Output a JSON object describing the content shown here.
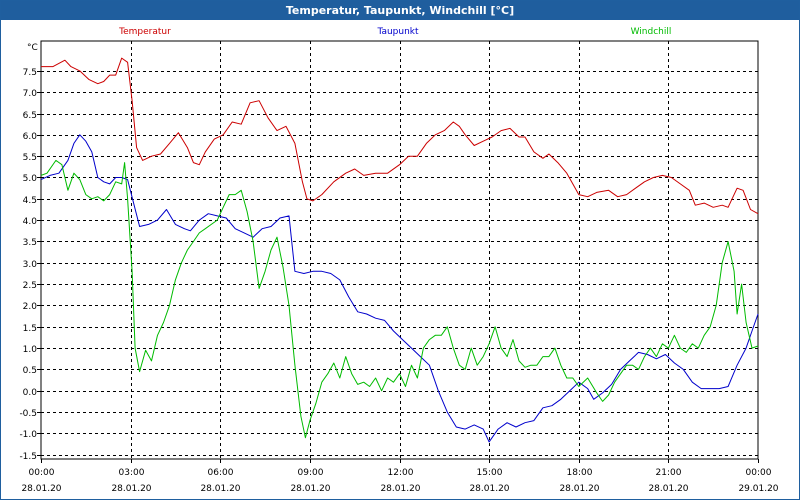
{
  "window": {
    "title": "Temperatur, Taupunkt, Windchill [°C]"
  },
  "chart_data": {
    "type": "line",
    "title": "Temperatur, Taupunkt, Windchill [°C]",
    "ylabel": "°C",
    "xlabel": "",
    "ylim": [
      -1.6,
      8.2
    ],
    "xlim": [
      0,
      24
    ],
    "y_ticks": [
      -1.5,
      -1.0,
      -0.5,
      0.0,
      0.5,
      1.0,
      1.5,
      2.0,
      2.5,
      3.0,
      3.5,
      4.0,
      4.5,
      5.0,
      5.5,
      6.0,
      6.5,
      7.0,
      7.5
    ],
    "y_tick_labels": [
      "-1.5",
      "-1.0",
      "-0.5",
      "0.0",
      "0.5",
      "1.0",
      "1.5",
      "2.0",
      "2.5",
      "3.0",
      "3.5",
      "4.0",
      "4.5",
      "5.0",
      "5.5",
      "6.0",
      "6.5",
      "7.0",
      "7.5"
    ],
    "x_ticks": [
      {
        "hour": 0,
        "time": "00:00",
        "date": "28.01.20"
      },
      {
        "hour": 3,
        "time": "03:00",
        "date": "28.01.20"
      },
      {
        "hour": 6,
        "time": "06:00",
        "date": "28.01.20"
      },
      {
        "hour": 9,
        "time": "09:00",
        "date": "28.01.20"
      },
      {
        "hour": 12,
        "time": "12:00",
        "date": "28.01.20"
      },
      {
        "hour": 15,
        "time": "15:00",
        "date": "28.01.20"
      },
      {
        "hour": 18,
        "time": "18:00",
        "date": "28.01.20"
      },
      {
        "hour": 21,
        "time": "21:00",
        "date": "28.01.20"
      },
      {
        "hour": 24,
        "time": "00:00",
        "date": "29.01.20"
      }
    ],
    "series": [
      {
        "name": "Temperatur",
        "color": "#cc0000",
        "points": [
          [
            0,
            7.6
          ],
          [
            0.4,
            7.6
          ],
          [
            0.8,
            7.75
          ],
          [
            1.0,
            7.6
          ],
          [
            1.3,
            7.5
          ],
          [
            1.6,
            7.3
          ],
          [
            1.9,
            7.2
          ],
          [
            2.1,
            7.25
          ],
          [
            2.3,
            7.4
          ],
          [
            2.5,
            7.4
          ],
          [
            2.7,
            7.8
          ],
          [
            2.9,
            7.7
          ],
          [
            3.05,
            6.8
          ],
          [
            3.2,
            5.7
          ],
          [
            3.4,
            5.4
          ],
          [
            3.7,
            5.5
          ],
          [
            4.0,
            5.55
          ],
          [
            4.3,
            5.8
          ],
          [
            4.6,
            6.05
          ],
          [
            4.9,
            5.7
          ],
          [
            5.1,
            5.35
          ],
          [
            5.3,
            5.3
          ],
          [
            5.5,
            5.6
          ],
          [
            5.8,
            5.9
          ],
          [
            6.1,
            6.0
          ],
          [
            6.4,
            6.3
          ],
          [
            6.7,
            6.25
          ],
          [
            7.0,
            6.75
          ],
          [
            7.3,
            6.8
          ],
          [
            7.6,
            6.4
          ],
          [
            7.9,
            6.1
          ],
          [
            8.2,
            6.2
          ],
          [
            8.5,
            5.8
          ],
          [
            8.75,
            4.9
          ],
          [
            8.9,
            4.5
          ],
          [
            9.1,
            4.45
          ],
          [
            9.4,
            4.6
          ],
          [
            9.8,
            4.9
          ],
          [
            10.2,
            5.1
          ],
          [
            10.5,
            5.2
          ],
          [
            10.8,
            5.05
          ],
          [
            11.2,
            5.1
          ],
          [
            11.6,
            5.1
          ],
          [
            12.0,
            5.3
          ],
          [
            12.3,
            5.5
          ],
          [
            12.6,
            5.5
          ],
          [
            12.9,
            5.8
          ],
          [
            13.2,
            6.0
          ],
          [
            13.5,
            6.1
          ],
          [
            13.8,
            6.3
          ],
          [
            14.0,
            6.2
          ],
          [
            14.2,
            6.0
          ],
          [
            14.5,
            5.75
          ],
          [
            14.8,
            5.85
          ],
          [
            15.1,
            5.95
          ],
          [
            15.4,
            6.1
          ],
          [
            15.7,
            6.15
          ],
          [
            16.0,
            5.95
          ],
          [
            16.2,
            5.95
          ],
          [
            16.5,
            5.6
          ],
          [
            16.8,
            5.45
          ],
          [
            17.0,
            5.55
          ],
          [
            17.3,
            5.35
          ],
          [
            17.6,
            5.1
          ],
          [
            17.8,
            4.85
          ],
          [
            18.0,
            4.6
          ],
          [
            18.3,
            4.55
          ],
          [
            18.6,
            4.65
          ],
          [
            19.0,
            4.7
          ],
          [
            19.3,
            4.55
          ],
          [
            19.6,
            4.6
          ],
          [
            19.9,
            4.75
          ],
          [
            20.2,
            4.9
          ],
          [
            20.5,
            5.0
          ],
          [
            20.8,
            5.05
          ],
          [
            21.1,
            5.0
          ],
          [
            21.4,
            4.85
          ],
          [
            21.7,
            4.7
          ],
          [
            21.9,
            4.35
          ],
          [
            22.2,
            4.4
          ],
          [
            22.5,
            4.3
          ],
          [
            22.8,
            4.35
          ],
          [
            23.0,
            4.3
          ],
          [
            23.3,
            4.75
          ],
          [
            23.5,
            4.7
          ],
          [
            23.75,
            4.25
          ],
          [
            24.0,
            4.15
          ]
        ]
      },
      {
        "name": "Taupunkt",
        "color": "#0000cc",
        "points": [
          [
            0,
            4.95
          ],
          [
            0.3,
            5.05
          ],
          [
            0.6,
            5.1
          ],
          [
            0.9,
            5.4
          ],
          [
            1.1,
            5.8
          ],
          [
            1.3,
            6.0
          ],
          [
            1.5,
            5.85
          ],
          [
            1.7,
            5.6
          ],
          [
            1.9,
            5.0
          ],
          [
            2.1,
            4.9
          ],
          [
            2.3,
            4.85
          ],
          [
            2.5,
            5.0
          ],
          [
            2.7,
            5.0
          ],
          [
            2.9,
            4.95
          ],
          [
            3.1,
            4.4
          ],
          [
            3.3,
            3.85
          ],
          [
            3.6,
            3.9
          ],
          [
            3.9,
            4.0
          ],
          [
            4.2,
            4.25
          ],
          [
            4.5,
            3.9
          ],
          [
            4.8,
            3.8
          ],
          [
            5.0,
            3.75
          ],
          [
            5.3,
            4.0
          ],
          [
            5.6,
            4.15
          ],
          [
            5.9,
            4.1
          ],
          [
            6.2,
            4.05
          ],
          [
            6.5,
            3.8
          ],
          [
            6.8,
            3.7
          ],
          [
            7.1,
            3.6
          ],
          [
            7.4,
            3.8
          ],
          [
            7.7,
            3.85
          ],
          [
            8.0,
            4.05
          ],
          [
            8.3,
            4.1
          ],
          [
            8.5,
            2.8
          ],
          [
            8.8,
            2.75
          ],
          [
            9.1,
            2.8
          ],
          [
            9.4,
            2.8
          ],
          [
            9.7,
            2.75
          ],
          [
            10.0,
            2.6
          ],
          [
            10.3,
            2.2
          ],
          [
            10.6,
            1.85
          ],
          [
            10.9,
            1.8
          ],
          [
            11.2,
            1.7
          ],
          [
            11.5,
            1.65
          ],
          [
            11.8,
            1.4
          ],
          [
            12.1,
            1.2
          ],
          [
            12.4,
            1.0
          ],
          [
            12.7,
            0.8
          ],
          [
            13.0,
            0.6
          ],
          [
            13.3,
            0.0
          ],
          [
            13.6,
            -0.5
          ],
          [
            13.9,
            -0.85
          ],
          [
            14.2,
            -0.9
          ],
          [
            14.5,
            -0.8
          ],
          [
            14.8,
            -0.9
          ],
          [
            15.0,
            -1.2
          ],
          [
            15.3,
            -0.9
          ],
          [
            15.6,
            -0.75
          ],
          [
            15.9,
            -0.85
          ],
          [
            16.2,
            -0.75
          ],
          [
            16.5,
            -0.7
          ],
          [
            16.8,
            -0.4
          ],
          [
            17.1,
            -0.35
          ],
          [
            17.4,
            -0.2
          ],
          [
            17.7,
            0.0
          ],
          [
            18.0,
            0.2
          ],
          [
            18.3,
            0.05
          ],
          [
            18.5,
            -0.2
          ],
          [
            18.8,
            -0.05
          ],
          [
            19.1,
            0.15
          ],
          [
            19.4,
            0.5
          ],
          [
            19.7,
            0.7
          ],
          [
            20.0,
            0.9
          ],
          [
            20.3,
            0.85
          ],
          [
            20.6,
            0.75
          ],
          [
            20.9,
            0.85
          ],
          [
            21.2,
            0.65
          ],
          [
            21.5,
            0.5
          ],
          [
            21.8,
            0.2
          ],
          [
            22.1,
            0.05
          ],
          [
            22.4,
            0.05
          ],
          [
            22.7,
            0.05
          ],
          [
            23.0,
            0.1
          ],
          [
            23.3,
            0.6
          ],
          [
            23.6,
            1.0
          ],
          [
            23.8,
            1.4
          ],
          [
            24.0,
            1.8
          ]
        ]
      },
      {
        "name": "Windchill",
        "color": "#00bb00",
        "points": [
          [
            0,
            5.05
          ],
          [
            0.2,
            5.1
          ],
          [
            0.5,
            5.4
          ],
          [
            0.7,
            5.3
          ],
          [
            0.9,
            4.7
          ],
          [
            1.1,
            5.1
          ],
          [
            1.3,
            4.95
          ],
          [
            1.5,
            4.6
          ],
          [
            1.7,
            4.5
          ],
          [
            1.9,
            4.55
          ],
          [
            2.1,
            4.45
          ],
          [
            2.3,
            4.6
          ],
          [
            2.5,
            4.9
          ],
          [
            2.7,
            4.85
          ],
          [
            2.8,
            5.35
          ],
          [
            2.9,
            4.5
          ],
          [
            3.05,
            2.8
          ],
          [
            3.15,
            1.0
          ],
          [
            3.3,
            0.45
          ],
          [
            3.5,
            0.95
          ],
          [
            3.7,
            0.7
          ],
          [
            3.9,
            1.3
          ],
          [
            4.1,
            1.6
          ],
          [
            4.3,
            2.0
          ],
          [
            4.5,
            2.6
          ],
          [
            4.7,
            3.0
          ],
          [
            4.9,
            3.3
          ],
          [
            5.1,
            3.5
          ],
          [
            5.3,
            3.7
          ],
          [
            5.5,
            3.8
          ],
          [
            5.7,
            3.9
          ],
          [
            5.9,
            4.0
          ],
          [
            6.1,
            4.3
          ],
          [
            6.3,
            4.6
          ],
          [
            6.5,
            4.6
          ],
          [
            6.7,
            4.7
          ],
          [
            6.9,
            4.2
          ],
          [
            7.1,
            3.5
          ],
          [
            7.3,
            2.4
          ],
          [
            7.5,
            2.8
          ],
          [
            7.7,
            3.3
          ],
          [
            7.9,
            3.6
          ],
          [
            8.1,
            2.9
          ],
          [
            8.3,
            2.0
          ],
          [
            8.5,
            0.6
          ],
          [
            8.7,
            -0.6
          ],
          [
            8.85,
            -1.1
          ],
          [
            9.0,
            -0.7
          ],
          [
            9.2,
            -0.3
          ],
          [
            9.4,
            0.2
          ],
          [
            9.6,
            0.4
          ],
          [
            9.8,
            0.65
          ],
          [
            10.0,
            0.3
          ],
          [
            10.2,
            0.8
          ],
          [
            10.4,
            0.4
          ],
          [
            10.6,
            0.15
          ],
          [
            10.8,
            0.2
          ],
          [
            11.0,
            0.1
          ],
          [
            11.2,
            0.3
          ],
          [
            11.4,
            0.0
          ],
          [
            11.6,
            0.3
          ],
          [
            11.8,
            0.2
          ],
          [
            12.0,
            0.4
          ],
          [
            12.2,
            0.1
          ],
          [
            12.4,
            0.6
          ],
          [
            12.6,
            0.3
          ],
          [
            12.8,
            1.0
          ],
          [
            13.0,
            1.2
          ],
          [
            13.2,
            1.3
          ],
          [
            13.4,
            1.3
          ],
          [
            13.6,
            1.5
          ],
          [
            13.8,
            1.0
          ],
          [
            14.0,
            0.6
          ],
          [
            14.2,
            0.5
          ],
          [
            14.4,
            1.0
          ],
          [
            14.6,
            0.6
          ],
          [
            14.8,
            0.8
          ],
          [
            15.0,
            1.1
          ],
          [
            15.2,
            1.5
          ],
          [
            15.4,
            1.0
          ],
          [
            15.6,
            0.8
          ],
          [
            15.8,
            1.2
          ],
          [
            16.0,
            0.7
          ],
          [
            16.2,
            0.55
          ],
          [
            16.4,
            0.6
          ],
          [
            16.6,
            0.6
          ],
          [
            16.8,
            0.8
          ],
          [
            17.0,
            0.8
          ],
          [
            17.2,
            1.0
          ],
          [
            17.4,
            0.6
          ],
          [
            17.6,
            0.3
          ],
          [
            17.8,
            0.3
          ],
          [
            18.0,
            0.1
          ],
          [
            18.3,
            0.3
          ],
          [
            18.6,
            -0.05
          ],
          [
            18.8,
            -0.25
          ],
          [
            19.0,
            -0.1
          ],
          [
            19.2,
            0.2
          ],
          [
            19.4,
            0.4
          ],
          [
            19.6,
            0.6
          ],
          [
            19.8,
            0.6
          ],
          [
            20.0,
            0.5
          ],
          [
            20.2,
            0.8
          ],
          [
            20.4,
            1.0
          ],
          [
            20.6,
            0.8
          ],
          [
            20.8,
            1.1
          ],
          [
            21.0,
            1.0
          ],
          [
            21.2,
            1.3
          ],
          [
            21.4,
            1.0
          ],
          [
            21.6,
            0.9
          ],
          [
            21.8,
            1.1
          ],
          [
            22.0,
            1.0
          ],
          [
            22.2,
            1.3
          ],
          [
            22.4,
            1.5
          ],
          [
            22.6,
            2.0
          ],
          [
            22.8,
            3.0
          ],
          [
            23.0,
            3.5
          ],
          [
            23.2,
            2.8
          ],
          [
            23.3,
            1.8
          ],
          [
            23.45,
            2.5
          ],
          [
            23.6,
            1.6
          ],
          [
            23.8,
            1.0
          ],
          [
            24.0,
            1.05
          ]
        ]
      }
    ]
  }
}
